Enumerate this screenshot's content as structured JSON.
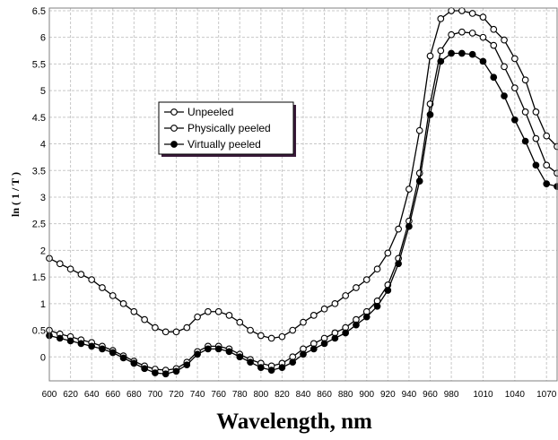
{
  "chart_data": {
    "type": "line",
    "title": "",
    "xlabel": "Wavelength, nm",
    "ylabel": "ln ( 1 / T )",
    "xlim": [
      600,
      1080
    ],
    "ylim": [
      -0.45,
      6.55
    ],
    "grid": true,
    "legend_position": "upper-left",
    "x_ticks": [
      600,
      620,
      640,
      660,
      680,
      700,
      720,
      740,
      760,
      780,
      800,
      820,
      840,
      860,
      880,
      900,
      920,
      940,
      960,
      980,
      1010,
      1040,
      1070
    ],
    "x_tick_labels": [
      "600",
      "620",
      "640",
      "660",
      "680",
      "700",
      "720",
      "740",
      "760",
      "780",
      "800",
      "820",
      "840",
      "860",
      "880",
      "900",
      "920",
      "940",
      "960",
      "980",
      "1010",
      "1040",
      "1070"
    ],
    "y_ticks": [
      0,
      0.5,
      1,
      1.5,
      2,
      2.5,
      3,
      3.5,
      4,
      4.5,
      5,
      5.5,
      6,
      6.5
    ],
    "y_tick_labels": [
      "0",
      "0.5",
      "1",
      "1.5",
      "2",
      "2.5",
      "3",
      "3.5",
      "4",
      "4.5",
      "5",
      "5.5",
      "6",
      "6.5"
    ],
    "x": [
      600,
      610,
      620,
      630,
      640,
      650,
      660,
      670,
      680,
      690,
      700,
      710,
      720,
      730,
      740,
      750,
      760,
      770,
      780,
      790,
      800,
      810,
      820,
      830,
      840,
      850,
      860,
      870,
      880,
      890,
      900,
      910,
      920,
      930,
      940,
      950,
      960,
      970,
      980,
      990,
      1000,
      1010,
      1020,
      1030,
      1040,
      1050,
      1060,
      1070,
      1080
    ],
    "series": [
      {
        "name": "Unpeeled",
        "marker": "open-circle",
        "color": "#000000",
        "values": [
          1.85,
          1.75,
          1.65,
          1.55,
          1.45,
          1.3,
          1.15,
          1.0,
          0.85,
          0.7,
          0.55,
          0.47,
          0.47,
          0.55,
          0.75,
          0.85,
          0.85,
          0.78,
          0.65,
          0.5,
          0.4,
          0.35,
          0.38,
          0.5,
          0.65,
          0.78,
          0.9,
          1.0,
          1.15,
          1.3,
          1.45,
          1.65,
          1.95,
          2.4,
          3.15,
          4.25,
          5.65,
          6.35,
          6.5,
          6.5,
          6.45,
          6.38,
          6.15,
          5.95,
          5.6,
          5.2,
          4.6,
          4.15,
          3.95
        ]
      },
      {
        "name": "Physically peeled",
        "marker": "open-circle",
        "color": "#000000",
        "values": [
          0.5,
          0.43,
          0.38,
          0.32,
          0.27,
          0.2,
          0.12,
          0.02,
          -0.08,
          -0.17,
          -0.23,
          -0.25,
          -0.22,
          -0.1,
          0.1,
          0.2,
          0.2,
          0.15,
          0.05,
          -0.05,
          -0.12,
          -0.17,
          -0.12,
          0.0,
          0.15,
          0.25,
          0.35,
          0.45,
          0.55,
          0.7,
          0.85,
          1.05,
          1.35,
          1.85,
          2.55,
          3.45,
          4.75,
          5.75,
          6.05,
          6.1,
          6.08,
          6.0,
          5.85,
          5.45,
          5.05,
          4.6,
          4.1,
          3.6,
          3.45
        ]
      },
      {
        "name": "Virtually peeled",
        "marker": "filled-circle",
        "color": "#000000",
        "values": [
          0.4,
          0.35,
          0.3,
          0.25,
          0.2,
          0.15,
          0.08,
          -0.02,
          -0.12,
          -0.22,
          -0.3,
          -0.32,
          -0.27,
          -0.15,
          0.05,
          0.15,
          0.15,
          0.1,
          0.0,
          -0.1,
          -0.2,
          -0.25,
          -0.2,
          -0.1,
          0.05,
          0.15,
          0.25,
          0.35,
          0.45,
          0.6,
          0.75,
          0.95,
          1.25,
          1.75,
          2.45,
          3.3,
          4.55,
          5.55,
          5.7,
          5.7,
          5.68,
          5.55,
          5.25,
          4.9,
          4.45,
          4.05,
          3.6,
          3.25,
          3.2
        ]
      }
    ]
  }
}
